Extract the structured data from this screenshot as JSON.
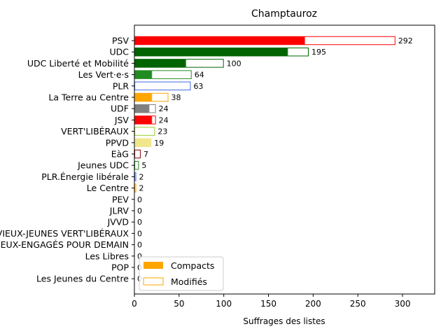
{
  "chart_data": {
    "type": "bar",
    "orientation": "horizontal",
    "title": "Champtauroz",
    "xlabel": "Suffrages des listes",
    "ylabel": "",
    "xlim": [
      0,
      336
    ],
    "xticks": [
      0,
      50,
      100,
      150,
      200,
      250,
      300
    ],
    "legend": {
      "placement": "lower-left",
      "entries": [
        "Compacts",
        "Modifiés"
      ],
      "color": "#ffa500"
    },
    "categories": [
      "PSV",
      "UDC",
      "UDC Liberté et Mobilité",
      "Les Vert·e·s",
      "PLR",
      "La Terre au Centre",
      "UDF",
      "JSV",
      "VERT'LIBÉRAUX",
      "PPVD",
      "EàG",
      "Jeunes UDC",
      "PLR.Énergie libérale",
      "Le Centre",
      "PEV",
      "JLRV",
      "JVVD",
      "LES VIEUX-JEUNES VERT'LIBÉRAUX",
      "LES VIEUX-ENGAGÉS POUR DEMAIN",
      "Les Libres",
      "POP",
      "Les Jeunes du Centre"
    ],
    "series": [
      {
        "name": "Compacts",
        "values": [
          190,
          171,
          57,
          19,
          0,
          19,
          16,
          19,
          0,
          19,
          0,
          0,
          0,
          0,
          0,
          0,
          0,
          0,
          0,
          0,
          0,
          0
        ]
      },
      {
        "name": "Modifiés",
        "values": [
          102,
          24,
          43,
          45,
          63,
          19,
          8,
          5,
          23,
          0,
          7,
          5,
          2,
          2,
          0,
          0,
          0,
          0,
          0,
          0,
          0,
          0
        ]
      }
    ],
    "totals": [
      292,
      195,
      100,
      64,
      63,
      38,
      24,
      24,
      23,
      19,
      7,
      5,
      2,
      2,
      0,
      0,
      0,
      0,
      0,
      0,
      0,
      0
    ],
    "colors": [
      "#ff0000",
      "#006400",
      "#006400",
      "#228b22",
      "#4169e1",
      "#ffa500",
      "#808080",
      "#ff0000",
      "#9acd32",
      "#f0e68c",
      "#8b0000",
      "#228b22",
      "#4169e1",
      "#ffa500",
      "#1e90ff",
      "#4169e1",
      "#228b22",
      "#9acd32",
      "#ffa500",
      "#4169e1",
      "#8b0000",
      "#ffa500"
    ]
  }
}
